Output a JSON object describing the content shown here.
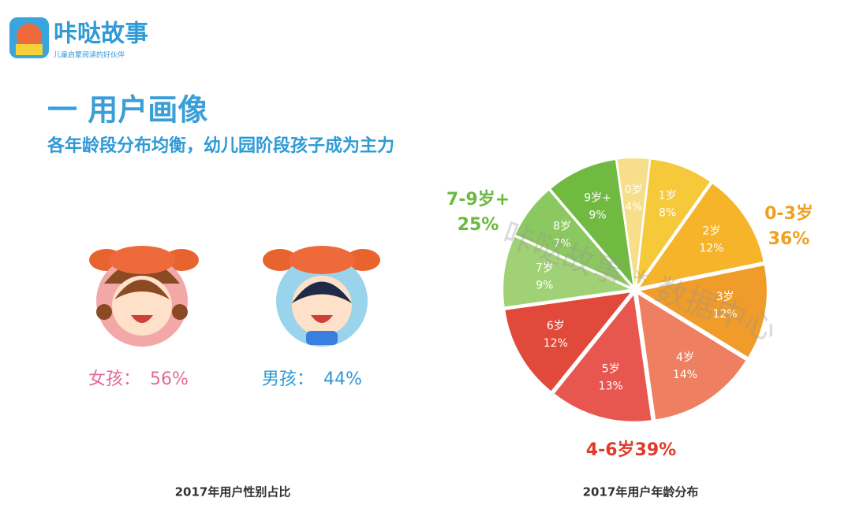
{
  "header": {
    "brand": "咔哒故事",
    "tagline": "儿童启蒙阅读的好伙伴"
  },
  "title": "一  用户画像",
  "subtitle": "各年龄段分布均衡，幼儿园阶段孩子成为主力",
  "gender": {
    "items": [
      {
        "label": "女孩：",
        "value": "56%"
      },
      {
        "label": "男孩：",
        "value": "44%"
      }
    ],
    "caption": "2017年用户性别占比"
  },
  "chart_data": {
    "type": "pie",
    "caption": "2017年用户年龄分布",
    "watermark": "咔哒故事 * 数据中心",
    "categories": [
      "0岁",
      "1岁",
      "2岁",
      "3岁",
      "4岁",
      "5岁",
      "6岁",
      "7岁",
      "8岁",
      "9岁+"
    ],
    "values": [
      4,
      8,
      12,
      12,
      14,
      13,
      12,
      9,
      7,
      9
    ],
    "value_labels": [
      "4%",
      "8%",
      "12%",
      "12%",
      "14%",
      "13%",
      "12%",
      "9%",
      "7%",
      "9%"
    ],
    "colors": [
      "#f7de8a",
      "#f6c93a",
      "#f5b42a",
      "#f09c2a",
      "#ee7f60",
      "#e8574f",
      "#e1493a",
      "#a0d275",
      "#8cc860",
      "#70ba42"
    ],
    "annotations": [
      {
        "lines": [
          "0-3岁",
          "36%"
        ],
        "color": "#f0a020"
      },
      {
        "lines": [
          "4-6岁39%"
        ],
        "color": "#e03a2a"
      },
      {
        "lines": [
          "7-9岁+",
          "25%"
        ],
        "color": "#6cb840"
      }
    ]
  }
}
